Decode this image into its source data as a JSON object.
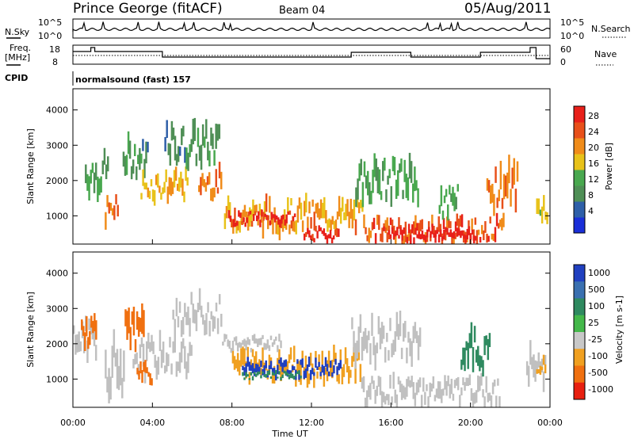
{
  "header": {
    "station": "Prince George (fitACF)",
    "beam": "Beam 04",
    "date": "05/Aug/2011"
  },
  "status_panel": {
    "nsky_label": "N.Sky",
    "nsky_ticks": [
      "10^5",
      "10^0"
    ],
    "nsearch_label": "N.Search",
    "nsearch_ticks": [
      "10^5",
      "10^0"
    ],
    "freq_label_1": "Freq.",
    "freq_label_2": "[MHz]",
    "freq_ticks": [
      "18",
      "8"
    ],
    "nave_label": "Nave",
    "nave_ticks": [
      "60",
      "0"
    ],
    "cpid_label": "CPID",
    "cpid_value": "normalsound (fast) 157"
  },
  "colors": {
    "power_scale": [
      "#1a2fd8",
      "#2e5fa8",
      "#4f8f56",
      "#49a84f",
      "#e8c21a",
      "#f08c1a",
      "#e8501a",
      "#e8201a"
    ],
    "velocity_scale": [
      "#2040c0",
      "#3a70b0",
      "#2f8a60",
      "#44b84a",
      "#c8c8c8",
      "#f0a020",
      "#f07010",
      "#e82010"
    ],
    "gray": "#c0c0c0"
  },
  "chart_data": [
    {
      "type": "heatmap",
      "title": "Power",
      "ylabel": "Slant Range [km]",
      "xlabel": "",
      "x_ticks": [
        "00:00",
        "04:00",
        "08:00",
        "12:00",
        "16:00",
        "20:00",
        "00:00"
      ],
      "y_ticks": [
        "1000",
        "2000",
        "3000",
        "4000"
      ],
      "ylim": [
        200,
        4600
      ],
      "xlim_hours": [
        0,
        24
      ],
      "colorbar": {
        "label": "Power [dB]",
        "ticks": [
          "28",
          "24",
          "20",
          "16",
          "12",
          "8",
          "4"
        ],
        "range": [
          0,
          30
        ]
      },
      "regions": [
        {
          "t0": 0.6,
          "t1": 1.8,
          "r0": 1700,
          "r1": 2700,
          "level": 12
        },
        {
          "t0": 1.6,
          "t1": 2.3,
          "r0": 800,
          "r1": 1500,
          "level": 24
        },
        {
          "t0": 2.5,
          "t1": 3.8,
          "r0": 2200,
          "r1": 3100,
          "level": 10
        },
        {
          "t0": 3.4,
          "t1": 5.8,
          "r0": 1500,
          "r1": 2200,
          "level": 18
        },
        {
          "t0": 4.6,
          "t1": 7.4,
          "r0": 2500,
          "r1": 3500,
          "level": 10
        },
        {
          "t0": 6.3,
          "t1": 7.5,
          "r0": 1600,
          "r1": 2300,
          "level": 22
        },
        {
          "t0": 7.6,
          "t1": 14.6,
          "r0": 600,
          "r1": 1400,
          "level": 20
        },
        {
          "t0": 7.8,
          "t1": 11.2,
          "r0": 750,
          "r1": 1100,
          "level": 28
        },
        {
          "t0": 11.6,
          "t1": 13.4,
          "r0": 300,
          "r1": 650,
          "level": 28
        },
        {
          "t0": 14.2,
          "t1": 17.4,
          "r0": 1500,
          "r1": 2500,
          "level": 12
        },
        {
          "t0": 14.6,
          "t1": 21.7,
          "r0": 300,
          "r1": 900,
          "level": 24
        },
        {
          "t0": 15.6,
          "t1": 20.3,
          "r0": 300,
          "r1": 700,
          "level": 29
        },
        {
          "t0": 18.4,
          "t1": 19.4,
          "r0": 1000,
          "r1": 1800,
          "level": 12
        },
        {
          "t0": 20.8,
          "t1": 22.4,
          "r0": 1300,
          "r1": 2400,
          "level": 22
        },
        {
          "t0": 23.3,
          "t1": 23.9,
          "r0": 900,
          "r1": 1600,
          "level": 16
        }
      ]
    },
    {
      "type": "heatmap",
      "title": "Velocity",
      "ylabel": "Slant Range [km]",
      "xlabel": "Time UT",
      "x_ticks": [
        "00:00",
        "04:00",
        "08:00",
        "12:00",
        "16:00",
        "20:00",
        "00:00"
      ],
      "y_ticks": [
        "1000",
        "2000",
        "3000",
        "4000"
      ],
      "ylim": [
        200,
        4600
      ],
      "xlim_hours": [
        0,
        24
      ],
      "colorbar": {
        "label": "Velocity [m s-1]",
        "ticks": [
          "1000",
          "500",
          "100",
          "25",
          "-25",
          "-100",
          "-500",
          "-1000"
        ],
        "range": [
          -1000,
          1000
        ]
      },
      "regions": [
        {
          "t0": 0.0,
          "t1": 1.2,
          "r0": 1700,
          "r1": 2600,
          "level": 0
        },
        {
          "t0": 0.4,
          "t1": 1.2,
          "r0": 2000,
          "r1": 2800,
          "level": -500
        },
        {
          "t0": 1.6,
          "t1": 2.6,
          "r0": 700,
          "r1": 2200,
          "level": 0
        },
        {
          "t0": 2.6,
          "t1": 3.6,
          "r0": 1600,
          "r1": 2800,
          "level": -500
        },
        {
          "t0": 3.0,
          "t1": 6.0,
          "r0": 1200,
          "r1": 2100,
          "level": 0
        },
        {
          "t0": 3.2,
          "t1": 4.0,
          "r0": 900,
          "r1": 1400,
          "level": -500
        },
        {
          "t0": 5.0,
          "t1": 7.5,
          "r0": 2400,
          "r1": 3300,
          "level": 0
        },
        {
          "t0": 8.0,
          "t1": 14.5,
          "r0": 1000,
          "r1": 1800,
          "level": -100
        },
        {
          "t0": 8.5,
          "t1": 13.5,
          "r0": 1100,
          "r1": 1500,
          "level": 500
        },
        {
          "t0": 8.5,
          "t1": 11.5,
          "r0": 1000,
          "r1": 1200,
          "level": 100
        },
        {
          "t0": 7.5,
          "t1": 10.5,
          "r0": 1800,
          "r1": 2200,
          "level": 0
        },
        {
          "t0": 14.0,
          "t1": 17.5,
          "r0": 1600,
          "r1": 2600,
          "level": 0
        },
        {
          "t0": 14.5,
          "t1": 21.5,
          "r0": 300,
          "r1": 1000,
          "level": 0
        },
        {
          "t0": 19.5,
          "t1": 21.0,
          "r0": 1300,
          "r1": 2300,
          "level": 100
        },
        {
          "t0": 22.8,
          "t1": 23.8,
          "r0": 800,
          "r1": 1800,
          "level": 0
        },
        {
          "t0": 23.3,
          "t1": 23.8,
          "r0": 1200,
          "r1": 1600,
          "level": -100
        }
      ]
    }
  ]
}
